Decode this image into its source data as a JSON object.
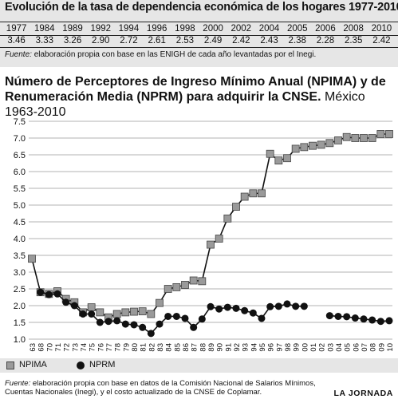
{
  "top_table": {
    "title": "Evolución de la tasa de dependencia económica de los hogares 1977-2010",
    "years": [
      "1977",
      "1984",
      "1989",
      "1992",
      "1994",
      "1996",
      "1998",
      "2000",
      "2002",
      "2004",
      "2005",
      "2006",
      "2008",
      "2010"
    ],
    "values": [
      "3.46",
      "3.33",
      "3.26",
      "2.90",
      "2.72",
      "2.61",
      "2.53",
      "2.49",
      "2.42",
      "2.43",
      "2.38",
      "2.28",
      "2.35",
      "2.42"
    ],
    "source_label": "Fuente:",
    "source_text": " elaboración propia con base en las ENIGH de cada año levantadas por el Inegi."
  },
  "chart_title": {
    "main": "Número de Perceptores de Ingreso Mínimo Anual (NPIMA) y de Renumeración Media (NPRM) para adquirir la CNSE.",
    "sub": " México 1963-2010"
  },
  "legend": {
    "series1": "NPIMA",
    "series2": "NPRM"
  },
  "bottom_source": {
    "label": "Fuente:",
    "text": " elaboración propia con base en datos de la Comisión Nacional de Salarios Mínimos, Cuentas Nacionales (Inegi), y el costo actualizado de la CNSE de Coplamar."
  },
  "credit": "LA JORNADA",
  "chart_data": {
    "type": "line",
    "title": "Número de Perceptores de Ingreso Mínimo Anual (NPIMA) y de Renumeración Media (NPRM) para adquirir la CNSE. México 1963-2010",
    "ylim": [
      1.0,
      7.5
    ],
    "yticks": [
      "1.0",
      "1.5",
      "2.0",
      "2.5",
      "3.0",
      "3.5",
      "4.0",
      "4.5",
      "5.0",
      "5.5",
      "6.0",
      "6.5",
      "7.0",
      "7.5"
    ],
    "grid": "horizontal",
    "categories": [
      "63",
      "68",
      "70",
      "71",
      "72",
      "73",
      "74",
      "75",
      "76",
      "77",
      "78",
      "79",
      "80",
      "81",
      "82",
      "83",
      "84",
      "85",
      "86",
      "87",
      "88",
      "89",
      "90",
      "91",
      "92",
      "93",
      "94",
      "95",
      "96",
      "97",
      "98",
      "99",
      "00",
      "01",
      "02",
      "03",
      "04",
      "05",
      "06",
      "07",
      "08",
      "09",
      "10"
    ],
    "series": [
      {
        "name": "NPIMA",
        "marker": "square",
        "color": "#9a9a9a",
        "values": [
          3.4,
          2.4,
          2.35,
          2.43,
          2.2,
          2.1,
          1.8,
          1.95,
          1.8,
          1.65,
          1.75,
          1.8,
          1.82,
          1.83,
          1.75,
          2.08,
          2.5,
          2.55,
          2.62,
          2.75,
          2.73,
          3.82,
          4.0,
          4.6,
          4.95,
          5.25,
          5.35,
          5.35,
          6.53,
          6.33,
          6.4,
          6.68,
          6.73,
          6.77,
          6.8,
          6.85,
          6.93,
          7.03,
          7.0,
          7.0,
          7.0,
          7.12,
          7.12
        ]
      },
      {
        "name": "NPRM",
        "marker": "circle",
        "color": "#111111",
        "values": [
          null,
          2.4,
          2.33,
          2.35,
          2.1,
          2.0,
          1.75,
          1.75,
          1.5,
          1.53,
          1.55,
          1.45,
          1.43,
          1.35,
          1.17,
          1.45,
          1.68,
          1.68,
          1.62,
          1.35,
          1.6,
          1.97,
          1.9,
          1.95,
          1.92,
          1.85,
          1.78,
          1.62,
          1.97,
          1.98,
          2.05,
          1.98,
          1.98,
          null,
          null,
          1.7,
          1.68,
          1.67,
          1.63,
          1.6,
          1.57,
          1.53,
          1.55
        ]
      }
    ]
  }
}
